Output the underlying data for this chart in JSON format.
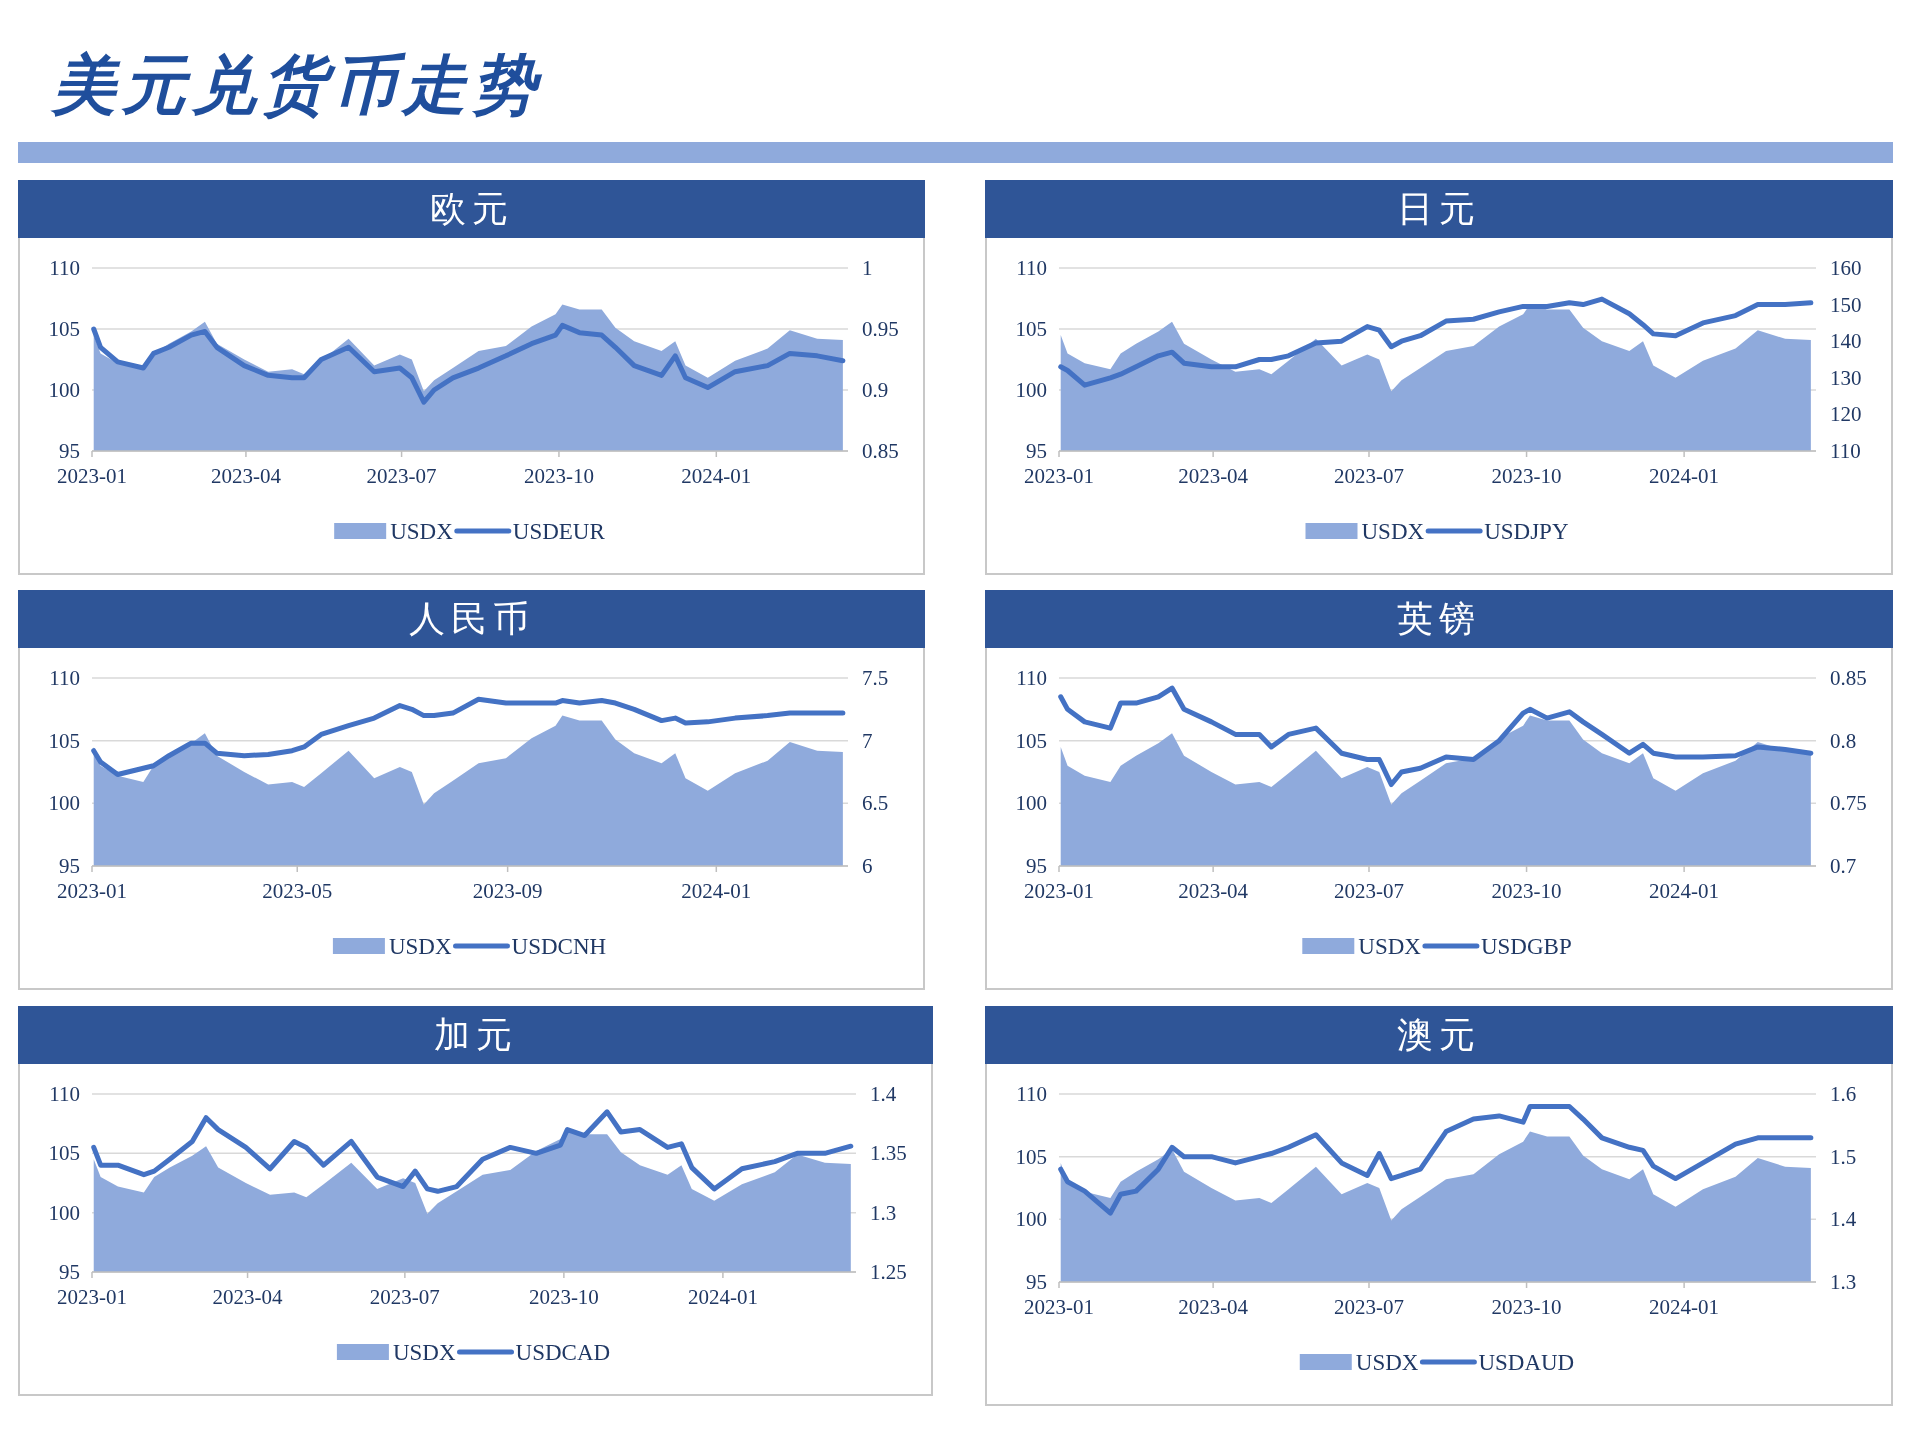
{
  "chart_data": [
    {
      "type": "other",
      "title": "美元兑货币走势"
    },
    {
      "type": "area",
      "title": "欧元",
      "x": [
        "2023-01-02",
        "2023-01-06",
        "2023-01-16",
        "2023-01-31",
        "2023-02-06",
        "2023-02-15",
        "2023-02-28",
        "2023-03-08",
        "2023-03-15",
        "2023-03-31",
        "2023-04-14",
        "2023-04-28",
        "2023-05-05",
        "2023-05-15",
        "2023-05-31",
        "2023-06-15",
        "2023-06-30",
        "2023-07-07",
        "2023-07-14",
        "2023-07-20",
        "2023-07-31",
        "2023-08-15",
        "2023-08-31",
        "2023-09-15",
        "2023-09-29",
        "2023-10-03",
        "2023-10-13",
        "2023-10-26",
        "2023-11-03",
        "2023-11-14",
        "2023-11-30",
        "2023-12-08",
        "2023-12-14",
        "2023-12-27",
        "2024-01-12",
        "2024-01-31",
        "2024-02-13",
        "2024-02-29",
        "2024-03-15"
      ],
      "xlim": [
        "2023-01-01",
        "2024-03-18"
      ],
      "xticks": [
        "2023-01",
        "2023-04",
        "2023-07",
        "2023-10",
        "2024-01"
      ],
      "ylim": [
        95,
        110
      ],
      "yticks": [
        95,
        100,
        105,
        110
      ],
      "y2lim": [
        0.85,
        1
      ],
      "y2ticks": [
        0.85,
        0.9,
        0.95,
        1
      ],
      "grid": "y",
      "legend": "bottom",
      "series": [
        {
          "name": "USDX",
          "type": "area",
          "color": "#8faadc",
          "values": [
            104.5,
            103.0,
            102.2,
            101.7,
            103.0,
            103.8,
            104.8,
            105.6,
            103.8,
            102.5,
            101.5,
            101.7,
            101.3,
            102.4,
            104.2,
            102.0,
            102.9,
            102.5,
            99.9,
            100.8,
            101.8,
            103.2,
            103.6,
            105.2,
            106.2,
            107.0,
            106.6,
            106.6,
            105.1,
            104.0,
            103.2,
            104.0,
            102.0,
            101.0,
            102.4,
            103.4,
            104.9,
            104.2,
            104.1
          ]
        },
        {
          "name": "USDEUR",
          "type": "line",
          "axis": "y2",
          "color": "#4472c4",
          "values": [
            0.95,
            0.935,
            0.923,
            0.918,
            0.93,
            0.935,
            0.945,
            0.948,
            0.935,
            0.92,
            0.912,
            0.91,
            0.91,
            0.925,
            0.935,
            0.915,
            0.918,
            0.91,
            0.89,
            0.9,
            0.91,
            0.918,
            0.928,
            0.938,
            0.945,
            0.953,
            0.947,
            0.945,
            0.935,
            0.92,
            0.912,
            0.928,
            0.91,
            0.902,
            0.915,
            0.92,
            0.93,
            0.928,
            0.924
          ]
        }
      ]
    },
    {
      "type": "area",
      "title": "日元",
      "x": [
        "2023-01-02",
        "2023-01-06",
        "2023-01-16",
        "2023-01-31",
        "2023-02-06",
        "2023-02-15",
        "2023-02-28",
        "2023-03-08",
        "2023-03-15",
        "2023-03-31",
        "2023-04-14",
        "2023-04-28",
        "2023-05-05",
        "2023-05-15",
        "2023-05-31",
        "2023-06-15",
        "2023-06-30",
        "2023-07-07",
        "2023-07-14",
        "2023-07-20",
        "2023-07-31",
        "2023-08-15",
        "2023-08-31",
        "2023-09-15",
        "2023-09-29",
        "2023-10-03",
        "2023-10-13",
        "2023-10-26",
        "2023-11-03",
        "2023-11-14",
        "2023-11-30",
        "2023-12-08",
        "2023-12-14",
        "2023-12-27",
        "2024-01-12",
        "2024-01-31",
        "2024-02-13",
        "2024-02-29",
        "2024-03-15"
      ],
      "xlim": [
        "2023-01-01",
        "2024-03-18"
      ],
      "xticks": [
        "2023-01",
        "2023-04",
        "2023-07",
        "2023-10",
        "2024-01"
      ],
      "ylim": [
        95,
        110
      ],
      "yticks": [
        95,
        100,
        105,
        110
      ],
      "y2lim": [
        110,
        160
      ],
      "y2ticks": [
        110,
        120,
        130,
        140,
        150,
        160
      ],
      "grid": "y",
      "legend": "bottom",
      "series": [
        {
          "name": "USDX",
          "type": "area",
          "color": "#8faadc",
          "values": [
            104.5,
            103.0,
            102.2,
            101.7,
            103.0,
            103.8,
            104.8,
            105.6,
            103.8,
            102.5,
            101.5,
            101.7,
            101.3,
            102.4,
            104.2,
            102.0,
            102.9,
            102.5,
            99.9,
            100.8,
            101.8,
            103.2,
            103.6,
            105.2,
            106.2,
            107.0,
            106.6,
            106.6,
            105.1,
            104.0,
            103.2,
            104.0,
            102.0,
            101.0,
            102.4,
            103.4,
            104.9,
            104.2,
            104.1
          ]
        },
        {
          "name": "USDJPY",
          "type": "line",
          "axis": "y2",
          "color": "#4472c4",
          "values": [
            133,
            132,
            128,
            130,
            131,
            133,
            136,
            137,
            134,
            133,
            133,
            135,
            135,
            136,
            139.5,
            140,
            144,
            143,
            138.5,
            140,
            141.5,
            145.5,
            146,
            148,
            149.5,
            149.5,
            149.5,
            150.5,
            150,
            151.5,
            147.5,
            144.5,
            142,
            141.5,
            145,
            147,
            150,
            150,
            150.5
          ]
        }
      ]
    },
    {
      "type": "area",
      "title": "人民币",
      "x": [
        "2023-01-02",
        "2023-01-06",
        "2023-01-16",
        "2023-01-31",
        "2023-02-06",
        "2023-02-15",
        "2023-02-28",
        "2023-03-08",
        "2023-03-15",
        "2023-03-31",
        "2023-04-14",
        "2023-04-28",
        "2023-05-05",
        "2023-05-15",
        "2023-05-31",
        "2023-06-15",
        "2023-06-30",
        "2023-07-07",
        "2023-07-14",
        "2023-07-20",
        "2023-07-31",
        "2023-08-15",
        "2023-08-31",
        "2023-09-15",
        "2023-09-29",
        "2023-10-03",
        "2023-10-13",
        "2023-10-26",
        "2023-11-03",
        "2023-11-14",
        "2023-11-30",
        "2023-12-08",
        "2023-12-14",
        "2023-12-27",
        "2024-01-12",
        "2024-01-31",
        "2024-02-13",
        "2024-02-29",
        "2024-03-15"
      ],
      "xlim": [
        "2023-01-01",
        "2024-03-18"
      ],
      "xticks": [
        "2023-01",
        "2023-05",
        "2023-09",
        "2024-01"
      ],
      "ylim": [
        95,
        110
      ],
      "yticks": [
        95,
        100,
        105,
        110
      ],
      "y2lim": [
        6,
        7.5
      ],
      "y2ticks": [
        6,
        6.5,
        7,
        7.5
      ],
      "grid": "y",
      "legend": "bottom",
      "series": [
        {
          "name": "USDX",
          "type": "area",
          "color": "#8faadc",
          "values": [
            104.5,
            103.0,
            102.2,
            101.7,
            103.0,
            103.8,
            104.8,
            105.6,
            103.8,
            102.5,
            101.5,
            101.7,
            101.3,
            102.4,
            104.2,
            102.0,
            102.9,
            102.5,
            99.9,
            100.8,
            101.8,
            103.2,
            103.6,
            105.2,
            106.2,
            107.0,
            106.6,
            106.6,
            105.1,
            104.0,
            103.2,
            104.0,
            102.0,
            101.0,
            102.4,
            103.4,
            104.9,
            104.2,
            104.1
          ]
        },
        {
          "name": "USDCNH",
          "type": "line",
          "axis": "y2",
          "color": "#4472c4",
          "values": [
            6.92,
            6.83,
            6.73,
            6.78,
            6.8,
            6.88,
            6.98,
            6.98,
            6.9,
            6.88,
            6.89,
            6.92,
            6.95,
            7.05,
            7.12,
            7.18,
            7.28,
            7.25,
            7.2,
            7.2,
            7.22,
            7.33,
            7.3,
            7.3,
            7.3,
            7.32,
            7.3,
            7.32,
            7.3,
            7.25,
            7.16,
            7.18,
            7.14,
            7.15,
            7.18,
            7.2,
            7.22,
            7.22,
            7.22
          ]
        }
      ]
    },
    {
      "type": "area",
      "title": "英镑",
      "x": [
        "2023-01-02",
        "2023-01-06",
        "2023-01-16",
        "2023-01-31",
        "2023-02-06",
        "2023-02-15",
        "2023-02-28",
        "2023-03-08",
        "2023-03-15",
        "2023-03-31",
        "2023-04-14",
        "2023-04-28",
        "2023-05-05",
        "2023-05-15",
        "2023-05-31",
        "2023-06-15",
        "2023-06-30",
        "2023-07-07",
        "2023-07-14",
        "2023-07-20",
        "2023-07-31",
        "2023-08-15",
        "2023-08-31",
        "2023-09-15",
        "2023-09-29",
        "2023-10-03",
        "2023-10-13",
        "2023-10-26",
        "2023-11-03",
        "2023-11-14",
        "2023-11-30",
        "2023-12-08",
        "2023-12-14",
        "2023-12-27",
        "2024-01-12",
        "2024-01-31",
        "2024-02-13",
        "2024-02-29",
        "2024-03-15"
      ],
      "xlim": [
        "2023-01-01",
        "2024-03-18"
      ],
      "xticks": [
        "2023-01",
        "2023-04",
        "2023-07",
        "2023-10",
        "2024-01"
      ],
      "ylim": [
        95,
        110
      ],
      "yticks": [
        95,
        100,
        105,
        110
      ],
      "y2lim": [
        0.7,
        0.85
      ],
      "y2ticks": [
        0.7,
        0.75,
        0.8,
        0.85
      ],
      "grid": "y",
      "legend": "bottom",
      "series": [
        {
          "name": "USDX",
          "type": "area",
          "color": "#8faadc",
          "values": [
            104.5,
            103.0,
            102.2,
            101.7,
            103.0,
            103.8,
            104.8,
            105.6,
            103.8,
            102.5,
            101.5,
            101.7,
            101.3,
            102.4,
            104.2,
            102.0,
            102.9,
            102.5,
            99.9,
            100.8,
            101.8,
            103.2,
            103.6,
            105.2,
            106.2,
            107.0,
            106.6,
            106.6,
            105.1,
            104.0,
            103.2,
            104.0,
            102.0,
            101.0,
            102.4,
            103.4,
            104.9,
            104.2,
            104.1
          ]
        },
        {
          "name": "USDGBP",
          "type": "line",
          "axis": "y2",
          "color": "#4472c4",
          "values": [
            0.835,
            0.825,
            0.815,
            0.81,
            0.83,
            0.83,
            0.835,
            0.842,
            0.825,
            0.815,
            0.805,
            0.805,
            0.795,
            0.805,
            0.81,
            0.79,
            0.785,
            0.785,
            0.765,
            0.775,
            0.778,
            0.787,
            0.785,
            0.8,
            0.822,
            0.825,
            0.818,
            0.823,
            0.815,
            0.805,
            0.79,
            0.797,
            0.79,
            0.787,
            0.787,
            0.788,
            0.795,
            0.793,
            0.79
          ]
        }
      ]
    },
    {
      "type": "area",
      "title": "加元",
      "x": [
        "2023-01-02",
        "2023-01-06",
        "2023-01-16",
        "2023-01-31",
        "2023-02-06",
        "2023-02-15",
        "2023-02-28",
        "2023-03-08",
        "2023-03-15",
        "2023-03-31",
        "2023-04-14",
        "2023-04-28",
        "2023-05-05",
        "2023-05-15",
        "2023-05-31",
        "2023-06-15",
        "2023-06-30",
        "2023-07-07",
        "2023-07-14",
        "2023-07-20",
        "2023-07-31",
        "2023-08-15",
        "2023-08-31",
        "2023-09-15",
        "2023-09-29",
        "2023-10-03",
        "2023-10-13",
        "2023-10-26",
        "2023-11-03",
        "2023-11-14",
        "2023-11-30",
        "2023-12-08",
        "2023-12-14",
        "2023-12-27",
        "2024-01-12",
        "2024-01-31",
        "2024-02-13",
        "2024-02-29",
        "2024-03-15"
      ],
      "xlim": [
        "2023-01-01",
        "2024-03-18"
      ],
      "xticks": [
        "2023-01",
        "2023-04",
        "2023-07",
        "2023-10",
        "2024-01"
      ],
      "ylim": [
        95,
        110
      ],
      "yticks": [
        95,
        100,
        105,
        110
      ],
      "y2lim": [
        1.25,
        1.4
      ],
      "y2ticks": [
        1.25,
        1.3,
        1.35,
        1.4
      ],
      "grid": "y",
      "legend": "bottom",
      "series": [
        {
          "name": "USDX",
          "type": "area",
          "color": "#8faadc",
          "values": [
            104.5,
            103.0,
            102.2,
            101.7,
            103.0,
            103.8,
            104.8,
            105.6,
            103.8,
            102.5,
            101.5,
            101.7,
            101.3,
            102.4,
            104.2,
            102.0,
            102.9,
            102.5,
            99.9,
            100.8,
            101.8,
            103.2,
            103.6,
            105.2,
            106.2,
            107.0,
            106.6,
            106.6,
            105.1,
            104.0,
            103.2,
            104.0,
            102.0,
            101.0,
            102.4,
            103.4,
            104.9,
            104.2,
            104.1
          ]
        },
        {
          "name": "USDCAD",
          "type": "line",
          "axis": "y2",
          "color": "#4472c4",
          "values": [
            1.355,
            1.34,
            1.34,
            1.332,
            1.335,
            1.345,
            1.36,
            1.38,
            1.37,
            1.355,
            1.337,
            1.36,
            1.355,
            1.34,
            1.36,
            1.33,
            1.322,
            1.335,
            1.32,
            1.318,
            1.322,
            1.345,
            1.355,
            1.35,
            1.357,
            1.37,
            1.365,
            1.385,
            1.368,
            1.37,
            1.355,
            1.358,
            1.338,
            1.32,
            1.337,
            1.343,
            1.35,
            1.35,
            1.356
          ]
        }
      ]
    },
    {
      "type": "area",
      "title": "澳元",
      "x": [
        "2023-01-02",
        "2023-01-06",
        "2023-01-16",
        "2023-01-31",
        "2023-02-06",
        "2023-02-15",
        "2023-02-28",
        "2023-03-08",
        "2023-03-15",
        "2023-03-31",
        "2023-04-14",
        "2023-04-28",
        "2023-05-05",
        "2023-05-15",
        "2023-05-31",
        "2023-06-15",
        "2023-06-30",
        "2023-07-07",
        "2023-07-14",
        "2023-07-20",
        "2023-07-31",
        "2023-08-15",
        "2023-08-31",
        "2023-09-15",
        "2023-09-29",
        "2023-10-03",
        "2023-10-13",
        "2023-10-26",
        "2023-11-03",
        "2023-11-14",
        "2023-11-30",
        "2023-12-08",
        "2023-12-14",
        "2023-12-27",
        "2024-01-12",
        "2024-01-31",
        "2024-02-13",
        "2024-02-29",
        "2024-03-15"
      ],
      "xlim": [
        "2023-01-01",
        "2024-03-18"
      ],
      "xticks": [
        "2023-01",
        "2023-04",
        "2023-07",
        "2023-10",
        "2024-01"
      ],
      "ylim": [
        95,
        110
      ],
      "yticks": [
        95,
        100,
        105,
        110
      ],
      "y2lim": [
        1.3,
        1.6
      ],
      "y2ticks": [
        1.3,
        1.4,
        1.5,
        1.6
      ],
      "grid": "y",
      "legend": "bottom",
      "series": [
        {
          "name": "USDX",
          "type": "area",
          "color": "#8faadc",
          "values": [
            104.5,
            103.0,
            102.2,
            101.7,
            103.0,
            103.8,
            104.8,
            105.6,
            103.8,
            102.5,
            101.5,
            101.7,
            101.3,
            102.4,
            104.2,
            102.0,
            102.9,
            102.5,
            99.9,
            100.8,
            101.8,
            103.2,
            103.6,
            105.2,
            106.2,
            107.0,
            106.6,
            106.6,
            105.1,
            104.0,
            103.2,
            104.0,
            102.0,
            101.0,
            102.4,
            103.4,
            104.9,
            104.2,
            104.1
          ]
        },
        {
          "name": "USDAUD",
          "type": "line",
          "axis": "y2",
          "color": "#4472c4",
          "values": [
            1.48,
            1.46,
            1.445,
            1.41,
            1.44,
            1.445,
            1.48,
            1.515,
            1.5,
            1.5,
            1.49,
            1.5,
            1.505,
            1.515,
            1.535,
            1.49,
            1.47,
            1.505,
            1.465,
            1.47,
            1.48,
            1.54,
            1.56,
            1.565,
            1.555,
            1.58,
            1.58,
            1.58,
            1.56,
            1.53,
            1.515,
            1.51,
            1.485,
            1.465,
            1.49,
            1.52,
            1.53,
            1.53,
            1.53
          ]
        }
      ]
    }
  ]
}
